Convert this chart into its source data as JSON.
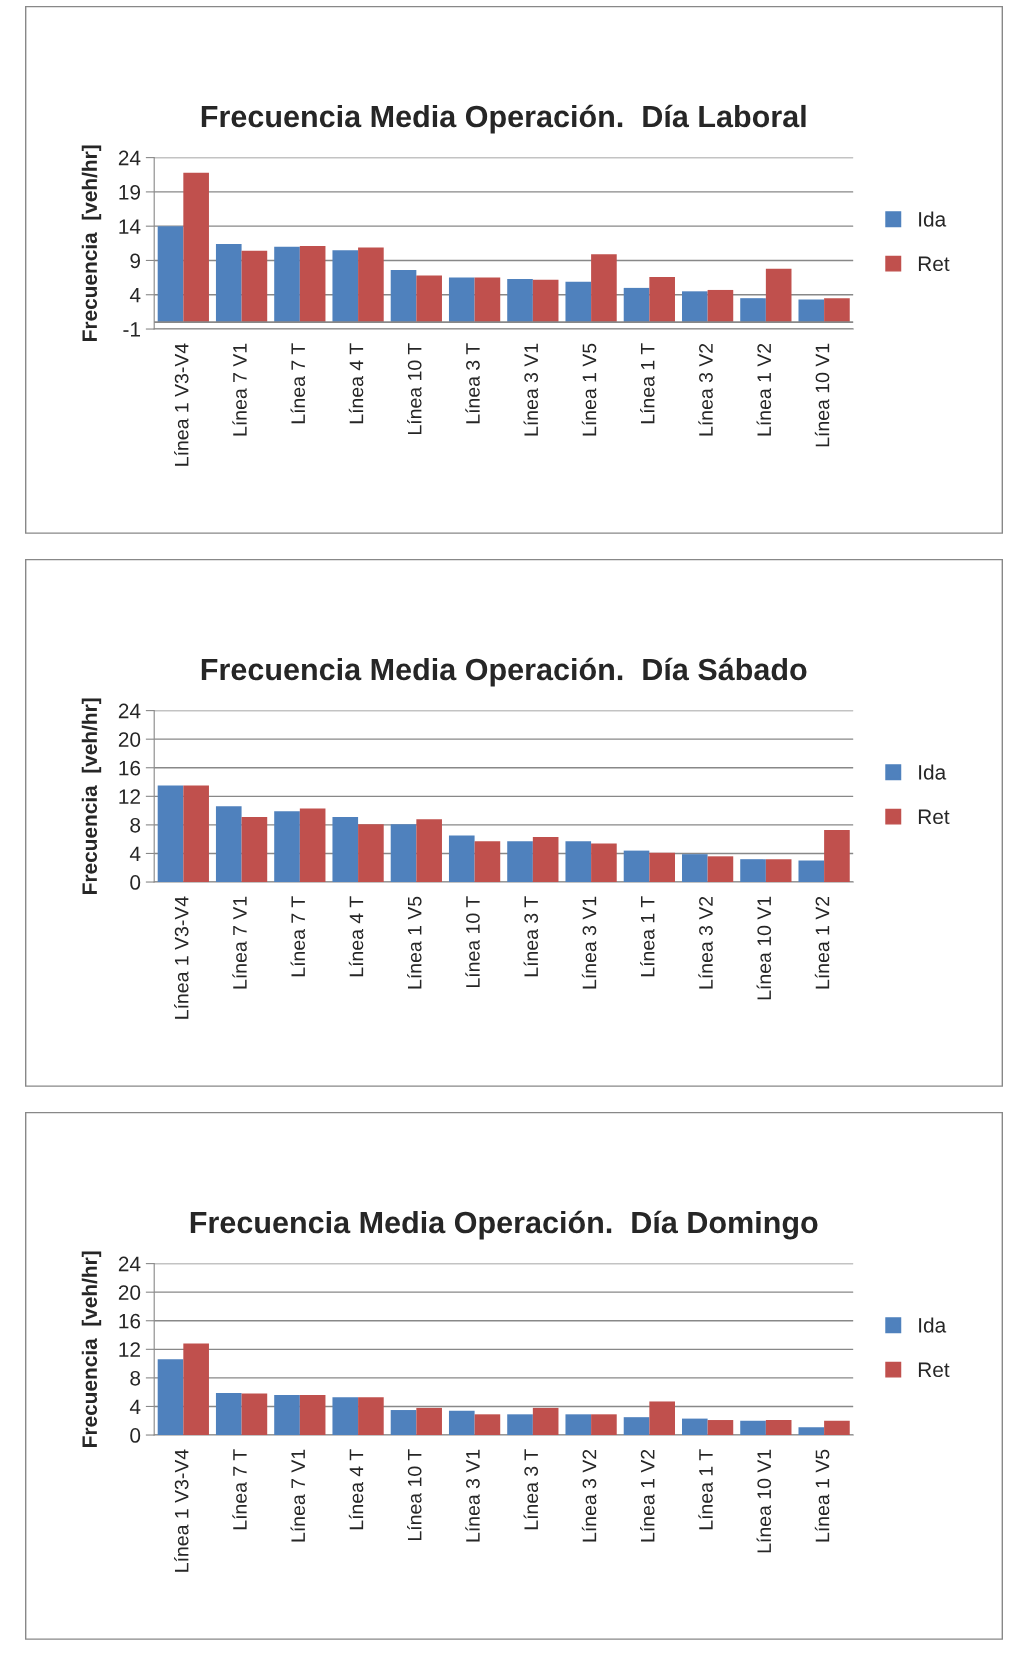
{
  "chart_data": [
    {
      "type": "bar",
      "title": "Frecuencia Media Operación.  Día Laboral",
      "ylabel": "Frecuencia  [veh/hr]",
      "categories": [
        "Línea 1 V3-V4",
        "Línea 7 V1",
        "Línea 7 T",
        "Línea 4 T",
        "Línea 10 T",
        "Línea 3 T",
        "Línea 3 V1",
        "Línea 1 V5",
        "Línea 1 T",
        "Línea 3 V2",
        "Línea 1 V2",
        "Línea 10 V1"
      ],
      "ylim": [
        -1,
        24
      ],
      "yticks": [
        -1,
        4,
        9,
        14,
        19,
        24
      ],
      "grid": "y",
      "legend": "right",
      "series": [
        {
          "name": "Ida",
          "color": "#4f81bd",
          "values": [
            14.0,
            11.4,
            11.0,
            10.5,
            7.6,
            6.5,
            6.3,
            5.9,
            5.0,
            4.5,
            3.5,
            3.3
          ]
        },
        {
          "name": "Ret",
          "color": "#c0504d",
          "values": [
            21.8,
            10.4,
            11.1,
            10.9,
            6.8,
            6.5,
            6.2,
            9.9,
            6.6,
            4.7,
            7.8,
            3.5
          ]
        }
      ]
    },
    {
      "type": "bar",
      "title": "Frecuencia Media Operación.  Día Sábado",
      "ylabel": "Frecuencia  [veh/hr]",
      "categories": [
        "Línea 1 V3-V4",
        "Línea 7 V1",
        "Línea 7 T",
        "Línea 4 T",
        "Línea 1 V5",
        "Línea 10 T",
        "Línea 3 T",
        "Línea 3 V1",
        "Línea 1 T",
        "Línea 3 V2",
        "Línea 10 V1",
        "Línea 1 V2"
      ],
      "ylim": [
        0,
        24
      ],
      "yticks": [
        0,
        4,
        8,
        12,
        16,
        20,
        24
      ],
      "grid": "y",
      "legend": "right",
      "series": [
        {
          "name": "Ida",
          "color": "#4f81bd",
          "values": [
            13.5,
            10.6,
            9.9,
            9.1,
            8.1,
            6.5,
            5.7,
            5.7,
            4.4,
            3.9,
            3.2,
            3.0
          ]
        },
        {
          "name": "Ret",
          "color": "#c0504d",
          "values": [
            13.5,
            9.1,
            10.3,
            8.1,
            8.8,
            5.7,
            6.3,
            5.4,
            4.1,
            3.6,
            3.2,
            7.3
          ]
        }
      ]
    },
    {
      "type": "bar",
      "title": "Frecuencia Media Operación.  Día Domingo",
      "ylabel": "Frecuencia  [veh/hr]",
      "categories": [
        "Línea 1 V3-V4",
        "Línea 7 T",
        "Línea 7 V1",
        "Línea 4 T",
        "Línea 10 T",
        "Línea 3 V1",
        "Línea 3 T",
        "Línea 3 V2",
        "Línea 1 V2",
        "Línea 1 T",
        "Línea 10 V1",
        "Línea 1 V5"
      ],
      "ylim": [
        0,
        24
      ],
      "yticks": [
        0,
        4,
        8,
        12,
        16,
        20,
        24
      ],
      "grid": "y",
      "legend": "right",
      "series": [
        {
          "name": "Ida",
          "color": "#4f81bd",
          "values": [
            10.6,
            5.9,
            5.6,
            5.3,
            3.5,
            3.4,
            2.9,
            2.9,
            2.5,
            2.3,
            2.0,
            1.1
          ]
        },
        {
          "name": "Ret",
          "color": "#c0504d",
          "values": [
            12.8,
            5.8,
            5.6,
            5.3,
            3.8,
            2.9,
            3.8,
            2.9,
            4.7,
            2.1,
            2.1,
            2.0
          ]
        }
      ]
    }
  ]
}
